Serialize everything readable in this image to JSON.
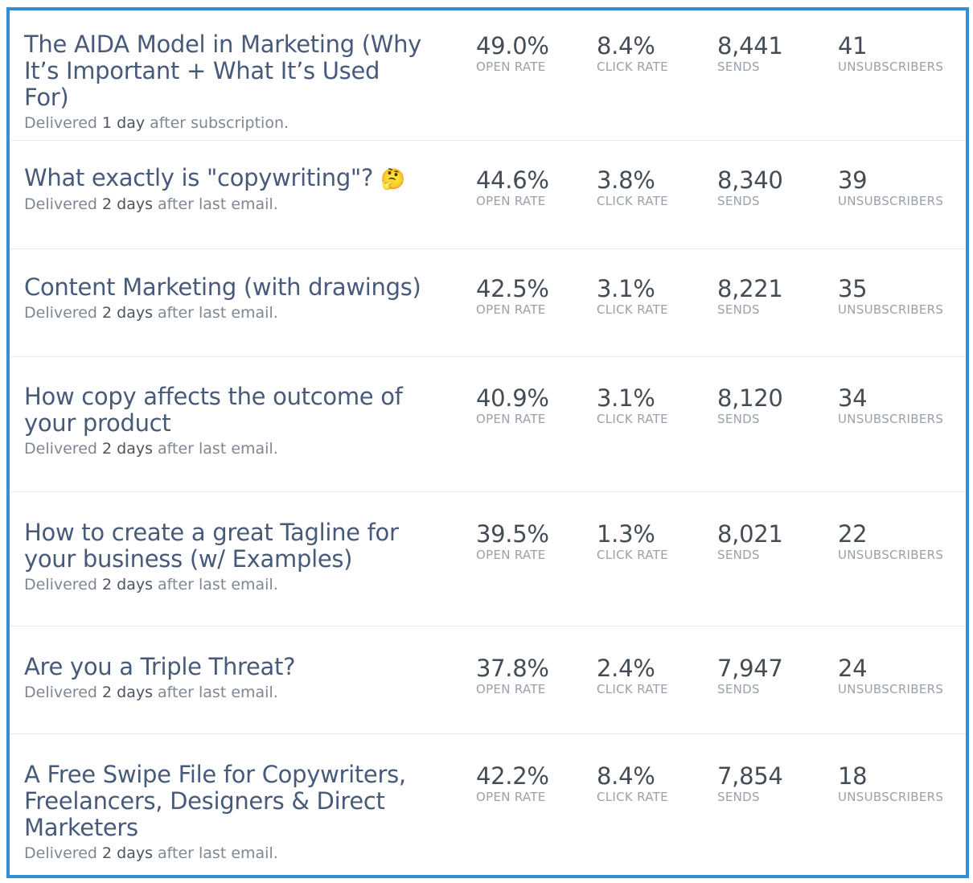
{
  "labels": {
    "open_rate": "OPEN RATE",
    "click_rate": "CLICK RATE",
    "sends": "SENDS",
    "unsubscribers": "UNSUBSCRIBERS"
  },
  "emails": [
    {
      "title": "The AIDA Model in Marketing (Why It’s Important + What It’s Used For)",
      "emoji": "",
      "delivered_prefix": "Delivered ",
      "delivered_value": "1 day",
      "delivered_suffix": " after subscription.",
      "open_rate": "49.0%",
      "click_rate": "8.4%",
      "sends": "8,441",
      "unsubscribers": "41"
    },
    {
      "title": "What exactly is \"copywriting\"?",
      "emoji": "🤔",
      "delivered_prefix": "Delivered ",
      "delivered_value": "2 days",
      "delivered_suffix": " after last email.",
      "open_rate": "44.6%",
      "click_rate": "3.8%",
      "sends": "8,340",
      "unsubscribers": "39"
    },
    {
      "title": "Content Marketing (with drawings)",
      "emoji": "",
      "delivered_prefix": "Delivered ",
      "delivered_value": "2 days",
      "delivered_suffix": " after last email.",
      "open_rate": "42.5%",
      "click_rate": "3.1%",
      "sends": "8,221",
      "unsubscribers": "35"
    },
    {
      "title": "How copy affects the outcome of your product",
      "emoji": "",
      "delivered_prefix": "Delivered ",
      "delivered_value": "2 days",
      "delivered_suffix": " after last email.",
      "open_rate": "40.9%",
      "click_rate": "3.1%",
      "sends": "8,120",
      "unsubscribers": "34"
    },
    {
      "title": "How to create a great Tagline for your business (w/ Examples)",
      "emoji": "",
      "delivered_prefix": "Delivered ",
      "delivered_value": "2 days",
      "delivered_suffix": " after last email.",
      "open_rate": "39.5%",
      "click_rate": "1.3%",
      "sends": "8,021",
      "unsubscribers": "22"
    },
    {
      "title": "Are you a Triple Threat?",
      "emoji": "",
      "delivered_prefix": "Delivered ",
      "delivered_value": "2 days",
      "delivered_suffix": " after last email.",
      "open_rate": "37.8%",
      "click_rate": "2.4%",
      "sends": "7,947",
      "unsubscribers": "24"
    },
    {
      "title": "A Free Swipe File for Copywriters, Freelancers, Designers & Direct Marketers",
      "emoji": "",
      "delivered_prefix": "Delivered ",
      "delivered_value": "2 days",
      "delivered_suffix": " after last email.",
      "open_rate": "42.2%",
      "click_rate": "8.4%",
      "sends": "7,854",
      "unsubscribers": "18"
    }
  ]
}
